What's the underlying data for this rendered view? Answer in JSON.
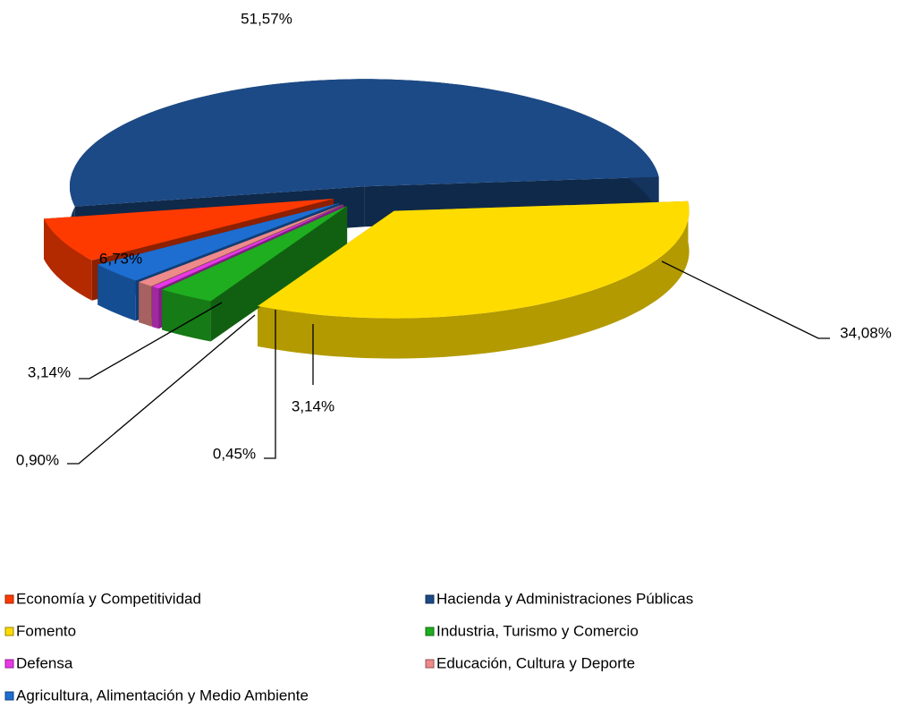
{
  "chart_data": {
    "type": "pie3d",
    "categories": [
      "Economía y Competitividad",
      "Hacienda y Administraciones Públicas",
      "Fomento",
      "Industria, Turismo y Comercio",
      "Defensa",
      "Educación, Cultura y Deporte",
      "Agricultura, Alimentación y Medio Ambiente"
    ],
    "values": [
      6.73,
      51.57,
      34.08,
      3.14,
      0.45,
      0.9,
      3.14
    ],
    "value_labels": [
      "6,73%",
      "51,57%",
      "34,08%",
      "3,14%",
      "0,45%",
      "0,90%",
      "3,14%"
    ],
    "colors": [
      "#ff3a00",
      "#1c4a86",
      "#ffdc00",
      "#1fae1f",
      "#e838e8",
      "#ee8a8a",
      "#1e6ed2"
    ],
    "legend": "bottom"
  }
}
